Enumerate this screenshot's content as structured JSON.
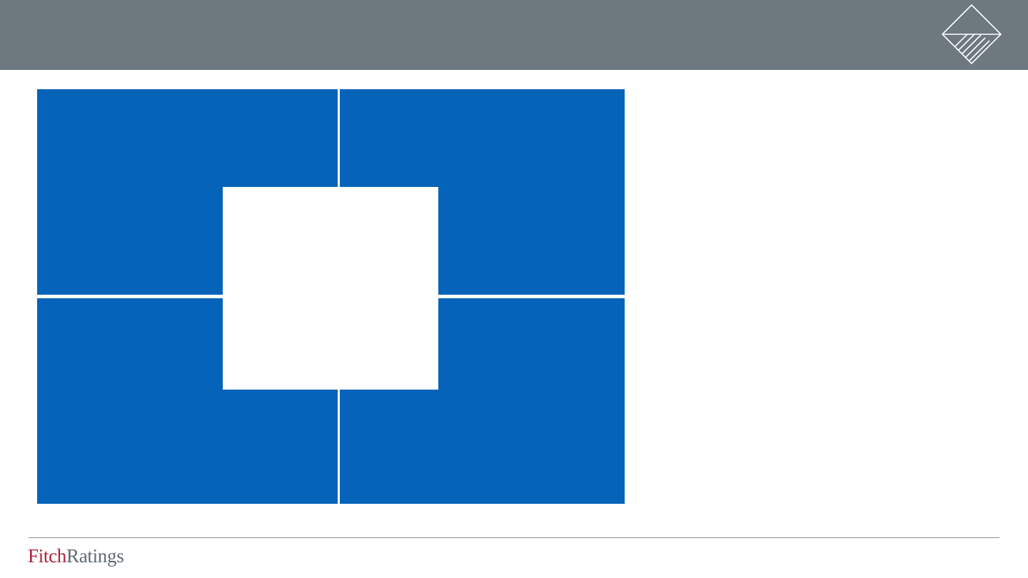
{
  "header": {
    "logo_icon": "diamond-hatched-icon",
    "bar_color": "#6d787f"
  },
  "content": {
    "quadrant_color": "#0563b9",
    "quadrants": [
      "top-left",
      "top-right",
      "bottom-left",
      "bottom-right"
    ],
    "center_box_color": "#ffffff"
  },
  "footer": {
    "brand_part1": "Fitch",
    "brand_part2": "Ratings",
    "brand_color_primary": "#b0213c",
    "brand_color_secondary": "#5f6a72"
  }
}
